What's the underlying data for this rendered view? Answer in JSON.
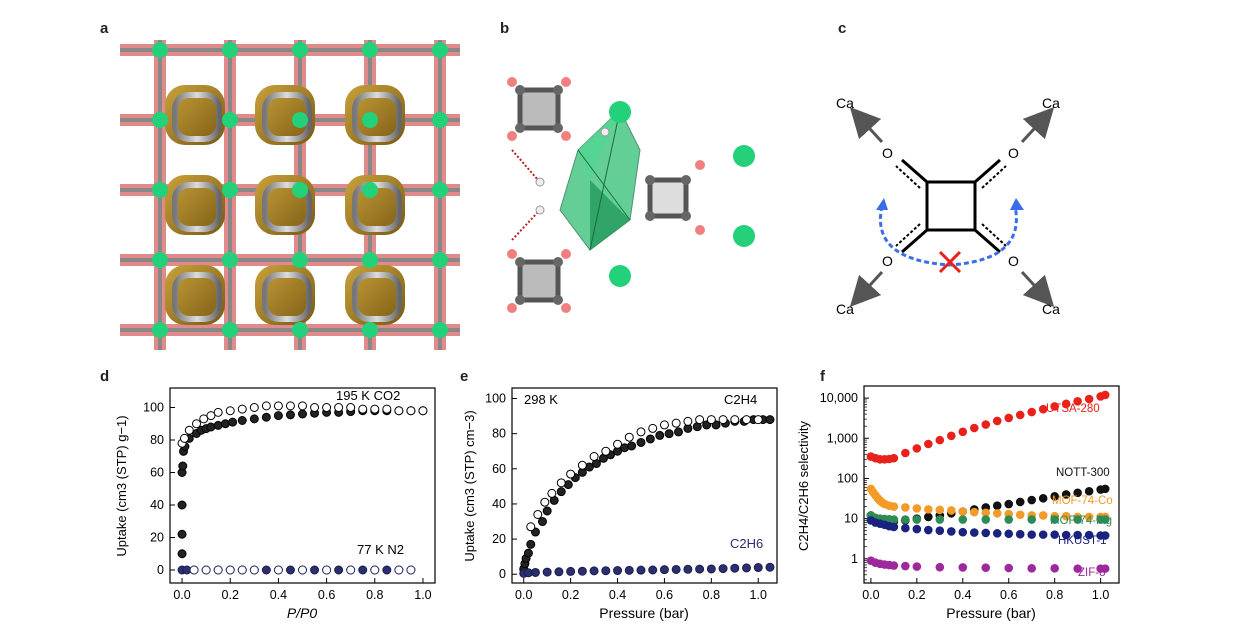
{
  "panels": {
    "a": "a",
    "b": "b",
    "c": "c",
    "d": "d",
    "e": "e",
    "f": "f"
  },
  "schematic_c": {
    "atom_o": "O",
    "atom_ca": "Ca",
    "colors": {
      "arrow": "#555555",
      "dashed_arc": "#3a6ee8",
      "cross": "#e8221a"
    }
  },
  "chart_data": [
    {
      "id": "d",
      "type": "scatter",
      "xlabel": "P/P0",
      "ylabel": "Uptake (cm3 (STP) g−1)",
      "xlim": [
        -0.05,
        1.05
      ],
      "ylim": [
        -8,
        112
      ],
      "x_ticks": [
        0.0,
        0.2,
        0.4,
        0.6,
        0.8,
        1.0
      ],
      "y_ticks": [
        0,
        20,
        40,
        60,
        80,
        100
      ],
      "annotations": [
        "195 K CO2",
        "77 K N2"
      ],
      "series": [
        {
          "name": "195 K CO2 adsorption",
          "marker": "filled-black",
          "x": [
            0.0,
            0.0,
            0.0,
            0.0,
            0.003,
            0.006,
            0.012,
            0.03,
            0.06,
            0.08,
            0.1,
            0.12,
            0.15,
            0.18,
            0.21,
            0.25,
            0.3,
            0.35,
            0.4,
            0.45,
            0.5,
            0.55,
            0.6,
            0.65,
            0.7,
            0.75,
            0.8,
            0.85,
            0.9,
            0.95,
            1.0
          ],
          "y": [
            10,
            22,
            40,
            60,
            64,
            73,
            76,
            81,
            84,
            86,
            87,
            88,
            89,
            90,
            91,
            92,
            93,
            94,
            95,
            95.5,
            96,
            96.5,
            97,
            97,
            97.5,
            98,
            98,
            98,
            98,
            98,
            98
          ]
        },
        {
          "name": "195 K CO2 desorption",
          "marker": "open-black",
          "x": [
            0.0,
            0.01,
            0.03,
            0.06,
            0.09,
            0.12,
            0.15,
            0.2,
            0.25,
            0.3,
            0.35,
            0.4,
            0.45,
            0.5,
            0.55,
            0.6,
            0.65,
            0.7,
            0.75,
            0.8,
            0.85,
            0.9,
            0.95,
            1.0
          ],
          "y": [
            78,
            81,
            86,
            90,
            93,
            95,
            97,
            98,
            99,
            100,
            101,
            101,
            101,
            101,
            100,
            100,
            100,
            100,
            99,
            99,
            99,
            98,
            98,
            98
          ]
        },
        {
          "name": "77 K N2 adsorption",
          "marker": "filled-navy",
          "x": [
            0.0,
            0.02,
            0.05,
            0.1,
            0.15,
            0.2,
            0.25,
            0.3,
            0.35,
            0.4,
            0.45,
            0.5,
            0.55,
            0.6,
            0.65,
            0.7,
            0.75,
            0.8,
            0.85,
            0.9,
            0.95
          ],
          "y": [
            0,
            0,
            0,
            0,
            0,
            0,
            0,
            0,
            0,
            0,
            0,
            0,
            0,
            0,
            0,
            0,
            0,
            0,
            0,
            0,
            0
          ]
        },
        {
          "name": "77 K N2 desorption",
          "marker": "open-navy",
          "x": [
            0.05,
            0.1,
            0.15,
            0.2,
            0.25,
            0.3,
            0.4,
            0.5,
            0.6,
            0.7,
            0.8,
            0.9,
            0.95
          ],
          "y": [
            0,
            0,
            0,
            0,
            0,
            0,
            0,
            0,
            0,
            0,
            0,
            0,
            0
          ]
        }
      ]
    },
    {
      "id": "e",
      "type": "scatter",
      "xlabel": "Pressure (bar)",
      "ylabel": "Uptake (cm3 (STP) cm−3)",
      "xlim": [
        -0.05,
        1.08
      ],
      "ylim": [
        -5,
        106
      ],
      "x_ticks": [
        0.0,
        0.2,
        0.4,
        0.6,
        0.8,
        1.0
      ],
      "y_ticks": [
        0,
        20,
        40,
        60,
        80,
        100
      ],
      "annotations": [
        "298 K",
        "C2H4",
        "C2H6"
      ],
      "series": [
        {
          "name": "C2H4 adsorption",
          "marker": "filled-black",
          "x": [
            0.0,
            0.005,
            0.01,
            0.02,
            0.03,
            0.05,
            0.08,
            0.1,
            0.13,
            0.16,
            0.19,
            0.22,
            0.25,
            0.28,
            0.31,
            0.34,
            0.37,
            0.4,
            0.43,
            0.46,
            0.5,
            0.54,
            0.58,
            0.62,
            0.66,
            0.7,
            0.74,
            0.78,
            0.82,
            0.86,
            0.9,
            0.94,
            0.98,
            1.02,
            1.05
          ],
          "y": [
            3,
            6,
            9,
            12,
            17,
            24,
            30,
            36,
            42,
            47,
            51,
            55,
            58,
            61,
            63,
            66,
            68,
            70,
            72,
            73,
            75,
            77,
            79,
            80,
            81,
            83,
            84,
            85,
            85,
            86,
            87,
            87,
            88,
            88,
            88
          ]
        },
        {
          "name": "C2H4 desorption",
          "marker": "open-black",
          "x": [
            0.03,
            0.06,
            0.09,
            0.12,
            0.16,
            0.2,
            0.25,
            0.3,
            0.35,
            0.4,
            0.45,
            0.5,
            0.55,
            0.6,
            0.65,
            0.7,
            0.75,
            0.8,
            0.85,
            0.9,
            0.95,
            1.0
          ],
          "y": [
            27,
            34,
            41,
            46,
            52,
            57,
            62,
            67,
            70,
            74,
            78,
            81,
            83,
            85,
            86,
            87,
            88,
            88,
            88,
            88,
            88,
            88
          ]
        },
        {
          "name": "C2H6",
          "marker": "filled-navy",
          "x": [
            0.0,
            0.02,
            0.05,
            0.1,
            0.15,
            0.2,
            0.25,
            0.3,
            0.35,
            0.4,
            0.45,
            0.5,
            0.55,
            0.6,
            0.65,
            0.7,
            0.75,
            0.8,
            0.85,
            0.9,
            0.95,
            1.0,
            1.05
          ],
          "y": [
            0.5,
            0.8,
            1,
            1.2,
            1.4,
            1.6,
            1.7,
            1.9,
            2,
            2.1,
            2.2,
            2.3,
            2.4,
            2.6,
            2.7,
            2.8,
            2.9,
            3,
            3.2,
            3.4,
            3.6,
            3.8,
            4
          ]
        }
      ]
    },
    {
      "id": "f",
      "type": "scatter",
      "xlabel": "Pressure (bar)",
      "ylabel": "C2H4/C2H6 selectivity",
      "yscale": "log",
      "xlim": [
        -0.03,
        1.08
      ],
      "ylim": [
        0.25,
        20000
      ],
      "x_ticks": [
        0.0,
        0.2,
        0.4,
        0.6,
        0.8,
        1.0
      ],
      "y_ticks": [
        1,
        10,
        100,
        1000,
        10000
      ],
      "y_tick_labels": [
        "1",
        "10",
        "100",
        "1,000",
        "10,000"
      ],
      "series": [
        {
          "name": "UTSA-280",
          "color": "#e8221a",
          "x": [
            0.0,
            0.02,
            0.04,
            0.06,
            0.08,
            0.1,
            0.15,
            0.2,
            0.25,
            0.3,
            0.35,
            0.4,
            0.45,
            0.5,
            0.55,
            0.6,
            0.65,
            0.7,
            0.75,
            0.8,
            0.85,
            0.9,
            0.95,
            1.0,
            1.02
          ],
          "y": [
            350,
            320,
            300,
            300,
            305,
            320,
            430,
            560,
            720,
            900,
            1150,
            1450,
            1800,
            2200,
            2700,
            3200,
            3800,
            4500,
            5300,
            6200,
            7200,
            8300,
            9500,
            11000,
            12000
          ]
        },
        {
          "name": "NOTT-300",
          "color": "#111111",
          "x": [
            0.0,
            0.02,
            0.04,
            0.06,
            0.08,
            0.1,
            0.15,
            0.2,
            0.25,
            0.3,
            0.35,
            0.4,
            0.45,
            0.5,
            0.55,
            0.6,
            0.65,
            0.7,
            0.75,
            0.8,
            0.85,
            0.9,
            0.95,
            1.0,
            1.02
          ],
          "y": [
            12,
            10,
            9,
            8.5,
            8.5,
            8.5,
            9,
            10,
            11,
            12,
            13.5,
            15,
            17,
            19,
            21,
            23,
            26,
            29,
            32,
            36,
            40,
            44,
            48,
            53,
            55
          ]
        },
        {
          "name": "MOF-74-Co",
          "color": "#f39a28",
          "x": [
            0.0,
            0.01,
            0.02,
            0.03,
            0.04,
            0.05,
            0.06,
            0.08,
            0.1,
            0.15,
            0.2,
            0.25,
            0.3,
            0.35,
            0.4,
            0.45,
            0.5,
            0.55,
            0.6,
            0.65,
            0.7,
            0.75,
            0.8,
            0.85,
            0.9,
            0.95,
            1.0,
            1.02
          ],
          "y": [
            55,
            45,
            38,
            32,
            28,
            25,
            23,
            21,
            20,
            19,
            18,
            17,
            16.5,
            16,
            15,
            14.5,
            14,
            13.5,
            13,
            12.5,
            12,
            12,
            11.5,
            11.5,
            11,
            11,
            11,
            11
          ]
        },
        {
          "name": "MOF-74-Mg",
          "color": "#2e8b57",
          "x": [
            0.0,
            0.02,
            0.04,
            0.06,
            0.08,
            0.1,
            0.15,
            0.2,
            0.3,
            0.4,
            0.5,
            0.6,
            0.7,
            0.8,
            0.9,
            1.0,
            1.02
          ],
          "y": [
            12,
            10.5,
            10,
            9.8,
            9.6,
            9.5,
            9.5,
            9.5,
            9.5,
            9.5,
            9.5,
            9.5,
            9.5,
            9.5,
            9.5,
            9.5,
            9.5
          ]
        },
        {
          "name": "HKUST-1",
          "color": "#1a237e",
          "x": [
            0.0,
            0.02,
            0.04,
            0.06,
            0.08,
            0.1,
            0.15,
            0.2,
            0.25,
            0.3,
            0.35,
            0.4,
            0.45,
            0.5,
            0.55,
            0.6,
            0.65,
            0.7,
            0.75,
            0.8,
            0.85,
            0.9,
            0.95,
            1.0,
            1.02
          ],
          "y": [
            9,
            8,
            7.5,
            7,
            6.5,
            6.2,
            5.8,
            5.5,
            5.2,
            5,
            4.8,
            4.6,
            4.5,
            4.4,
            4.3,
            4.2,
            4.1,
            4,
            4,
            4,
            3.9,
            3.9,
            3.9,
            3.8,
            3.8
          ]
        },
        {
          "name": "ZIF-8",
          "color": "#9c2a9c",
          "x": [
            0.0,
            0.02,
            0.04,
            0.06,
            0.08,
            0.1,
            0.15,
            0.2,
            0.3,
            0.4,
            0.5,
            0.6,
            0.7,
            0.8,
            0.9,
            1.0,
            1.02
          ],
          "y": [
            0.9,
            0.8,
            0.75,
            0.72,
            0.7,
            0.68,
            0.66,
            0.64,
            0.62,
            0.61,
            0.6,
            0.59,
            0.58,
            0.58,
            0.57,
            0.57,
            0.57
          ]
        }
      ]
    }
  ]
}
